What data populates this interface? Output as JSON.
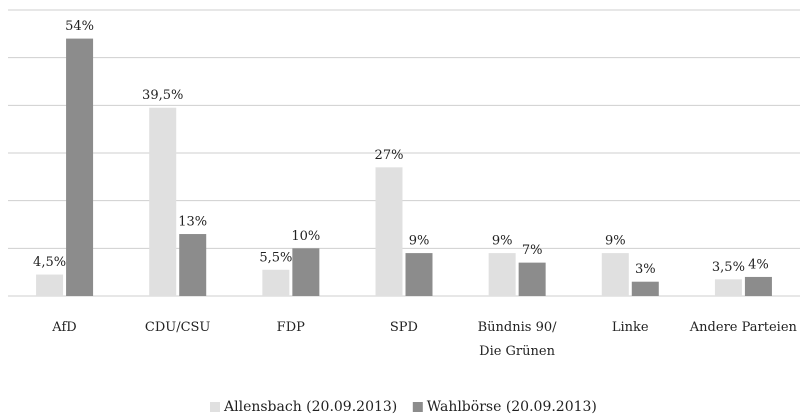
{
  "chart_data": {
    "type": "bar",
    "categories": [
      "AfD",
      "CDU/CSU",
      "FDP",
      "SPD",
      "Bündnis 90/\nDie Grünen",
      "Linke",
      "Andere Parteien"
    ],
    "series": [
      {
        "name": "Allensbach (20.09.2013)",
        "color": "#e0e0e0",
        "values": [
          4.5,
          39.5,
          5.5,
          27,
          9,
          9,
          3.5
        ],
        "value_labels": [
          "4,5%",
          "39,5%",
          "5,5%",
          "27%",
          "9%",
          "9%",
          "3,5%"
        ]
      },
      {
        "name": "Wahlbörse (20.09.2013)",
        "color": "#8c8c8c",
        "values": [
          54,
          13,
          10,
          9,
          7,
          3,
          4
        ],
        "value_labels": [
          "54%",
          "13%",
          "10%",
          "9%",
          "7%",
          "3%",
          "4%"
        ]
      }
    ],
    "ylim": [
      0,
      60
    ],
    "yticks": [
      0,
      10,
      20,
      30,
      40,
      50,
      60
    ],
    "grid": true
  }
}
